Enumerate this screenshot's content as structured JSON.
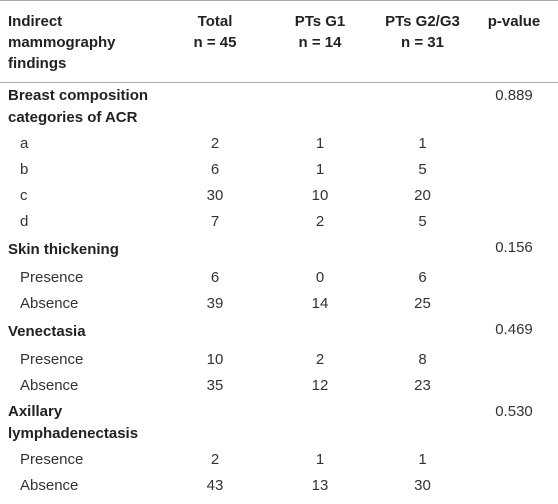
{
  "table": {
    "header": [
      [
        "Indirect",
        "mammography",
        "findings"
      ],
      [
        "Total",
        "n = 45"
      ],
      [
        "PTs G1",
        "n = 14"
      ],
      [
        "PTs G2/G3",
        "n = 31"
      ],
      [
        "p-value"
      ]
    ],
    "sections": [
      {
        "title": [
          "Breast composition",
          "categories of ACR"
        ],
        "p": "0.889",
        "rows": [
          [
            "a",
            2,
            1,
            1
          ],
          [
            "b",
            6,
            1,
            5
          ],
          [
            "c",
            30,
            10,
            20
          ],
          [
            "d",
            7,
            2,
            5
          ]
        ]
      },
      {
        "title": [
          "Skin thickening"
        ],
        "p": "0.156",
        "rows": [
          [
            "Presence",
            6,
            0,
            6
          ],
          [
            "Absence",
            39,
            14,
            25
          ]
        ]
      },
      {
        "title": [
          "Venectasia"
        ],
        "p": "0.469",
        "rows": [
          [
            "Presence",
            10,
            2,
            8
          ],
          [
            "Absence",
            35,
            12,
            23
          ]
        ]
      },
      {
        "title": [
          "Axillary",
          "lymphadenectasis"
        ],
        "p": "0.530",
        "rows": [
          [
            "Presence",
            2,
            1,
            1
          ],
          [
            "Absence",
            43,
            13,
            30
          ]
        ]
      }
    ]
  }
}
